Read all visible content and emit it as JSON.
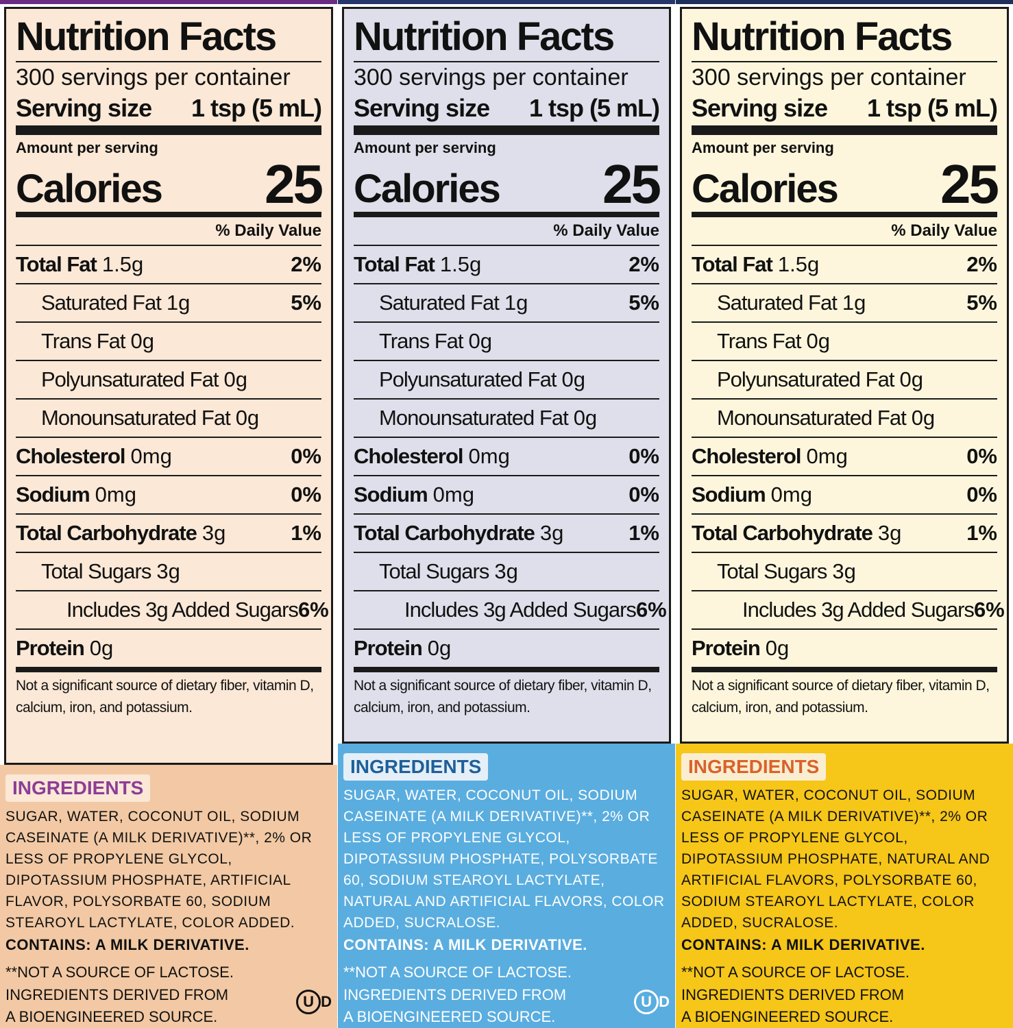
{
  "panels": [
    {
      "nutrition": {
        "title": "Nutrition Facts",
        "servings": "300 servings per container",
        "serving_size_label": "Serving size",
        "serving_size": "1 tsp (5 mL)",
        "amount_per_serving": "Amount per serving",
        "calories_label": "Calories",
        "calories": 25,
        "daily_value_header": "% Daily Value",
        "rows": [
          {
            "name": "Total Fat",
            "amount": "1.5g",
            "dv": "2%",
            "sub_rows": [
              {
                "name": "Saturated Fat",
                "amount": "1g",
                "dv": "5%"
              },
              {
                "name": "Trans Fat",
                "amount": "0g"
              },
              {
                "name": "Polyunsaturated Fat",
                "amount": "0g"
              },
              {
                "name": "Monounsaturated Fat",
                "amount": "0g"
              }
            ]
          },
          {
            "name": "Cholesterol",
            "amount": "0mg",
            "dv": "0%"
          },
          {
            "name": "Sodium",
            "amount": "0mg",
            "dv": "0%"
          },
          {
            "name": "Total Carbohydrate",
            "amount": "3g",
            "dv": "1%",
            "sub_rows": [
              {
                "name": "Total Sugars",
                "amount": "3g",
                "sub_rows": [
                  {
                    "name": "Includes 3g Added Sugars",
                    "dv": "6%"
                  }
                ]
              }
            ]
          },
          {
            "name": "Protein",
            "amount": "0g"
          }
        ],
        "footnote": "Not a significant source of dietary fiber, vitamin D, calcium, iron, and potassium."
      },
      "ingredients": {
        "heading": "INGREDIENTS",
        "list": "SUGAR, WATER, COCONUT OIL, SODIUM CASEINATE (A MILK DERIVATIVE)**, 2% OR LESS OF PROPYLENE GLYCOL, DIPOTASSIUM PHOSPHATE, ARTIFICIAL FLAVOR, POLYSORBATE 60, SODIUM STEAROYL LACTYLATE, COLOR ADDED.",
        "contains": "CONTAINS: A MILK DERIVATIVE.",
        "lactose_note": "**NOT A SOURCE OF LACTOSE.",
        "bioengineered": "INGREDIENTS DERIVED FROM A BIOENGINEERED SOURCE.",
        "kosher": {
          "letter": "U",
          "suffix": "D"
        }
      }
    },
    {
      "nutrition": {
        "title": "Nutrition Facts",
        "servings": "300 servings per container",
        "serving_size_label": "Serving size",
        "serving_size": "1 tsp (5 mL)",
        "amount_per_serving": "Amount per serving",
        "calories_label": "Calories",
        "calories": 25,
        "daily_value_header": "% Daily Value",
        "rows": [
          {
            "name": "Total Fat",
            "amount": "1.5g",
            "dv": "2%",
            "sub_rows": [
              {
                "name": "Saturated Fat",
                "amount": "1g",
                "dv": "5%"
              },
              {
                "name": "Trans Fat",
                "amount": "0g"
              },
              {
                "name": "Polyunsaturated Fat",
                "amount": "0g"
              },
              {
                "name": "Monounsaturated Fat",
                "amount": "0g"
              }
            ]
          },
          {
            "name": "Cholesterol",
            "amount": "0mg",
            "dv": "0%"
          },
          {
            "name": "Sodium",
            "amount": "0mg",
            "dv": "0%"
          },
          {
            "name": "Total Carbohydrate",
            "amount": "3g",
            "dv": "1%",
            "sub_rows": [
              {
                "name": "Total Sugars",
                "amount": "3g",
                "sub_rows": [
                  {
                    "name": "Includes 3g Added Sugars",
                    "dv": "6%"
                  }
                ]
              }
            ]
          },
          {
            "name": "Protein",
            "amount": "0g"
          }
        ],
        "footnote": "Not a significant source of dietary fiber, vitamin D, calcium, iron, and potassium."
      },
      "ingredients": {
        "heading": "INGREDIENTS",
        "list": "SUGAR, WATER, COCONUT OIL, SODIUM CASEINATE (A MILK DERIVATIVE)**, 2% OR LESS OF PROPYLENE GLYCOL, DIPOTASSIUM PHOSPHATE, POLYSORBATE 60, SODIUM STEAROYL LACTYLATE, NATURAL AND ARTIFICIAL FLAVORS, COLOR ADDED, SUCRALOSE.",
        "contains": "CONTAINS: A MILK DERIVATIVE.",
        "lactose_note": "**NOT A SOURCE OF LACTOSE.",
        "bioengineered": "INGREDIENTS DERIVED FROM A BIOENGINEERED SOURCE.",
        "kosher": {
          "letter": "U",
          "suffix": "D"
        }
      }
    },
    {
      "nutrition": {
        "title": "Nutrition Facts",
        "servings": "300 servings per container",
        "serving_size_label": "Serving size",
        "serving_size": "1 tsp (5 mL)",
        "amount_per_serving": "Amount per serving",
        "calories_label": "Calories",
        "calories": 25,
        "daily_value_header": "% Daily Value",
        "rows": [
          {
            "name": "Total Fat",
            "amount": "1.5g",
            "dv": "2%",
            "sub_rows": [
              {
                "name": "Saturated Fat",
                "amount": "1g",
                "dv": "5%"
              },
              {
                "name": "Trans Fat",
                "amount": "0g"
              },
              {
                "name": "Polyunsaturated Fat",
                "amount": "0g"
              },
              {
                "name": "Monounsaturated Fat",
                "amount": "0g"
              }
            ]
          },
          {
            "name": "Cholesterol",
            "amount": "0mg",
            "dv": "0%"
          },
          {
            "name": "Sodium",
            "amount": "0mg",
            "dv": "0%"
          },
          {
            "name": "Total Carbohydrate",
            "amount": "3g",
            "dv": "1%",
            "sub_rows": [
              {
                "name": "Total Sugars",
                "amount": "3g",
                "sub_rows": [
                  {
                    "name": "Includes 3g Added Sugars",
                    "dv": "6%"
                  }
                ]
              }
            ]
          },
          {
            "name": "Protein",
            "amount": "0g"
          }
        ],
        "footnote": "Not a significant source of dietary fiber, vitamin D, calcium, iron, and potassium."
      },
      "ingredients": {
        "heading": "INGREDIENTS",
        "list": "SUGAR, WATER, COCONUT OIL, SODIUM CASEINATE (A MILK DERIVATIVE)**, 2% OR LESS OF PROPYLENE GLYCOL, DIPOTASSIUM PHOSPHATE, NATURAL AND ARTIFICIAL FLAVORS, POLYSORBATE 60, SODIUM STEAROYL LACTYLATE, COLOR ADDED, SUCRALOSE.",
        "contains": "CONTAINS: A MILK DERIVATIVE.",
        "lactose_note": "**NOT A SOURCE OF LACTOSE.",
        "bioengineered": "INGREDIENTS DERIVED FROM A BIOENGINEERED SOURCE."
      }
    }
  ]
}
